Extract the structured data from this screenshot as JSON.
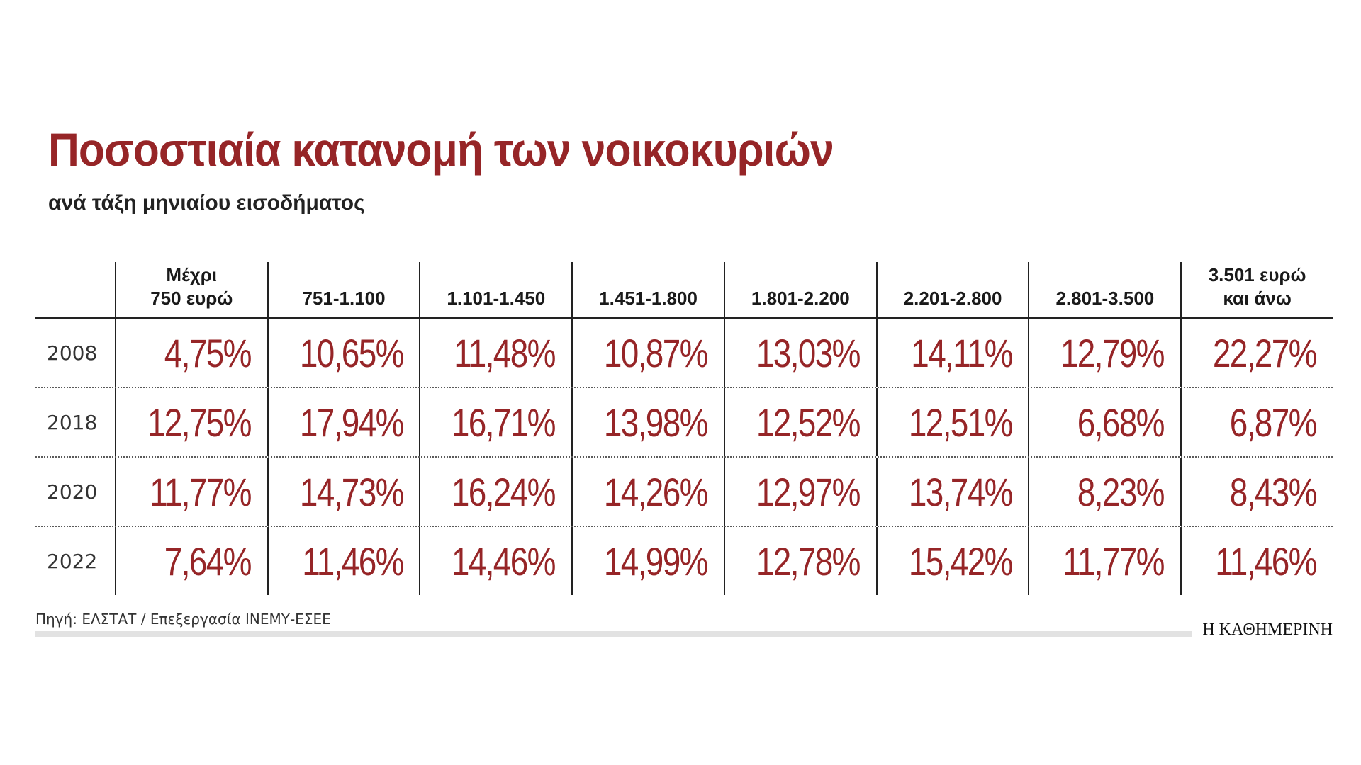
{
  "title": "Ποσοστιαία κατανομή των νοικοκυριών",
  "subtitle": "ανά τάξη μηνιαίου εισοδήματος",
  "source": "Πηγή: ΕΛΣΤΑΤ / Επεξεργασία ΙΝΕΜΥ-ΕΣΕΕ",
  "brand": "Η ΚΑΘΗΜΕΡΙΝΗ",
  "colors": {
    "value": "#962527",
    "title": "#962527",
    "text": "#222222"
  },
  "chart_data": {
    "type": "table",
    "columns": [
      "Μέχρι\n750 ευρώ",
      "751-1.100",
      "1.101-1.450",
      "1.451-1.800",
      "1.801-2.200",
      "2.201-2.800",
      "2.801-3.500",
      "3.501 ευρώ\nκαι άνω"
    ],
    "rows": [
      {
        "year": "2008",
        "values": [
          "4,75%",
          "10,65%",
          "11,48%",
          "10,87%",
          "13,03%",
          "14,11%",
          "12,79%",
          "22,27%"
        ]
      },
      {
        "year": "2018",
        "values": [
          "12,75%",
          "17,94%",
          "16,71%",
          "13,98%",
          "12,52%",
          "12,51%",
          "6,68%",
          "6,87%"
        ]
      },
      {
        "year": "2020",
        "values": [
          "11,77%",
          "14,73%",
          "16,24%",
          "14,26%",
          "12,97%",
          "13,74%",
          "8,23%",
          "8,43%"
        ]
      },
      {
        "year": "2022",
        "values": [
          "7,64%",
          "11,46%",
          "14,46%",
          "14,99%",
          "12,78%",
          "15,42%",
          "11,77%",
          "11,46%"
        ]
      }
    ]
  }
}
